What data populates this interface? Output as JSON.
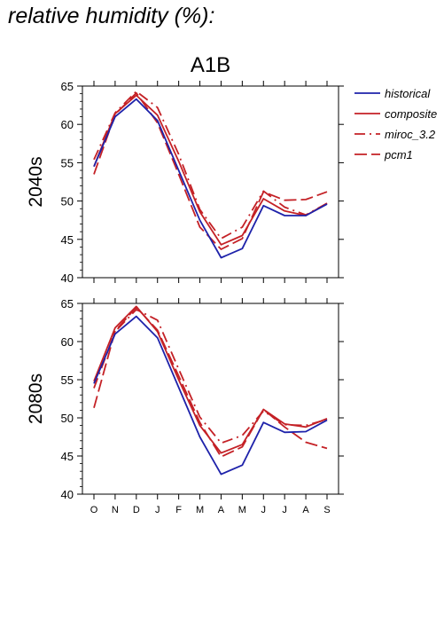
{
  "figure_title": "relative humidity (%):",
  "chart_data": [
    {
      "type": "line",
      "title": "A1B",
      "ylabel": "2040s",
      "categories": [
        "O",
        "N",
        "D",
        "J",
        "F",
        "M",
        "A",
        "M",
        "J",
        "J",
        "A",
        "S"
      ],
      "ylim": [
        40,
        65
      ],
      "yticks": [
        40,
        45,
        50,
        55,
        60,
        65
      ],
      "series": [
        {
          "name": "historical",
          "values": [
            54.5,
            61.0,
            63.3,
            60.5,
            54.0,
            47.5,
            42.6,
            43.8,
            49.4,
            48.1,
            48.1,
            49.6
          ]
        },
        {
          "name": "composite",
          "values": [
            54.5,
            61.4,
            63.8,
            61.2,
            55.2,
            48.6,
            44.3,
            45.5,
            50.3,
            48.7,
            48.1,
            49.7
          ]
        },
        {
          "name": "miroc_3.2",
          "values": [
            55.4,
            61.5,
            64.3,
            62.2,
            56.1,
            48.9,
            45.1,
            46.6,
            51.3,
            49.2,
            48.2,
            49.7
          ]
        },
        {
          "name": "pcm1",
          "values": [
            53.5,
            61.3,
            64.1,
            60.2,
            53.5,
            46.6,
            43.7,
            45.1,
            51.2,
            50.1,
            50.2,
            51.2
          ]
        }
      ]
    },
    {
      "type": "line",
      "title": "",
      "ylabel": "2080s",
      "categories": [
        "O",
        "N",
        "D",
        "J",
        "F",
        "M",
        "A",
        "M",
        "J",
        "J",
        "A",
        "S"
      ],
      "ylim": [
        40,
        65
      ],
      "yticks": [
        40,
        45,
        50,
        55,
        60,
        65
      ],
      "series": [
        {
          "name": "historical",
          "values": [
            54.5,
            61.0,
            63.3,
            60.5,
            54.0,
            47.5,
            42.6,
            43.8,
            49.4,
            48.1,
            48.2,
            49.7
          ]
        },
        {
          "name": "composite",
          "values": [
            54.8,
            61.8,
            64.6,
            61.3,
            55.0,
            49.0,
            45.4,
            46.5,
            51.1,
            49.2,
            48.8,
            49.9
          ]
        },
        {
          "name": "miroc_3.2",
          "values": [
            53.9,
            61.3,
            64.2,
            62.8,
            56.4,
            50.1,
            46.7,
            47.7,
            50.9,
            49.1,
            49.0,
            49.8
          ]
        },
        {
          "name": "pcm1",
          "values": [
            51.3,
            61.4,
            64.5,
            61.5,
            55.5,
            49.4,
            44.9,
            46.2,
            51.1,
            48.8,
            46.8,
            46.0
          ]
        }
      ]
    }
  ],
  "legend": {
    "placement": "right",
    "items": [
      {
        "label": "historical",
        "color": "#1e22aa",
        "dash": "solid"
      },
      {
        "label": "composite",
        "color": "#c42126",
        "dash": "solid"
      },
      {
        "label": "miroc_3.2",
        "color": "#c42126",
        "dash": "dashdot"
      },
      {
        "label": "pcm1",
        "color": "#c42126",
        "dash": "dashed"
      }
    ]
  }
}
